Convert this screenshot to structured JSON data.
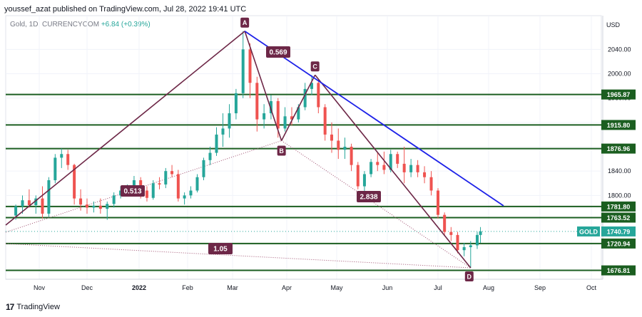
{
  "header": {
    "text": "youssef_azat published on TradingView.com, Jul 28, 2022 19:41 UTC"
  },
  "legend": {
    "symbol": "Gold, 1D, CURRENCYCOM",
    "change": "+6.84 (+0.39%)"
  },
  "footer": {
    "brand": "TradingView",
    "logo": "17"
  },
  "axis": {
    "currency": "USD",
    "price_ticks": [
      "2040.00",
      "2000.00",
      "1960.00",
      "1920.00",
      "1880.00",
      "1840.00",
      "1800.00"
    ],
    "date_ticks": [
      "Nov",
      "Dec",
      "2022",
      "Feb",
      "Mar",
      "Apr",
      "May",
      "Jun",
      "Jul",
      "Aug",
      "Sep",
      "Oct"
    ]
  },
  "chart_data": {
    "type": "candlestick",
    "symbol": "Gold, 1D, CURRENCYCOM",
    "y_unit": "USD",
    "ylim": [
      1663,
      2075
    ],
    "y_ticks": [
      1800,
      1840,
      1880,
      1920,
      1960,
      2000,
      2040
    ],
    "x_ticks": [
      "Nov",
      "Dec",
      "2022",
      "Feb",
      "Mar",
      "Apr",
      "May",
      "Jun",
      "Jul",
      "Aug",
      "Sep",
      "Oct"
    ],
    "last_price": {
      "label": "GOLD",
      "value": "1740.79"
    },
    "levels": [
      {
        "value": "1965.87"
      },
      {
        "value": "1915.80"
      },
      {
        "value": "1876.96"
      },
      {
        "value": "1781.80"
      },
      {
        "value": "1763.52"
      },
      {
        "value": "1720.94"
      },
      {
        "value": "1676.81"
      }
    ],
    "xabcd_points": [
      {
        "label": "A",
        "date": "2022-03-08",
        "price": 2070
      },
      {
        "label": "B",
        "date": "2022-03-29",
        "price": 1890
      },
      {
        "label": "C",
        "date": "2022-04-18",
        "price": 1998
      },
      {
        "label": "D",
        "date": "2022-07-21",
        "price": 1681
      }
    ],
    "ratios": [
      "0.513",
      "0.569",
      "2.838",
      "1.05"
    ],
    "trendline": {
      "from": {
        "date": "2022-03-08",
        "price": 2070
      },
      "to": {
        "date": "2022-08-10",
        "price": 1783
      }
    },
    "candles": [
      {
        "d": "2021-10-18",
        "o": 1767,
        "h": 1785,
        "l": 1760,
        "c": 1782
      },
      {
        "d": "2021-10-22",
        "o": 1782,
        "h": 1800,
        "l": 1770,
        "c": 1792
      },
      {
        "d": "2021-10-26",
        "o": 1792,
        "h": 1810,
        "l": 1780,
        "c": 1784
      },
      {
        "d": "2021-10-30",
        "o": 1784,
        "h": 1800,
        "l": 1770,
        "c": 1795
      },
      {
        "d": "2021-11-03",
        "o": 1795,
        "h": 1815,
        "l": 1762,
        "c": 1770
      },
      {
        "d": "2021-11-07",
        "o": 1770,
        "h": 1830,
        "l": 1765,
        "c": 1825
      },
      {
        "d": "2021-11-11",
        "o": 1825,
        "h": 1868,
        "l": 1820,
        "c": 1862
      },
      {
        "d": "2021-11-15",
        "o": 1862,
        "h": 1877,
        "l": 1845,
        "c": 1868
      },
      {
        "d": "2021-11-19",
        "o": 1868,
        "h": 1875,
        "l": 1842,
        "c": 1850
      },
      {
        "d": "2021-11-23",
        "o": 1850,
        "h": 1852,
        "l": 1785,
        "c": 1795
      },
      {
        "d": "2021-11-27",
        "o": 1795,
        "h": 1810,
        "l": 1775,
        "c": 1785
      },
      {
        "d": "2021-12-01",
        "o": 1785,
        "h": 1795,
        "l": 1770,
        "c": 1780
      },
      {
        "d": "2021-12-05",
        "o": 1780,
        "h": 1790,
        "l": 1772,
        "c": 1783
      },
      {
        "d": "2021-12-09",
        "o": 1783,
        "h": 1795,
        "l": 1770,
        "c": 1778
      },
      {
        "d": "2021-12-13",
        "o": 1778,
        "h": 1790,
        "l": 1760,
        "c": 1786
      },
      {
        "d": "2021-12-17",
        "o": 1786,
        "h": 1805,
        "l": 1780,
        "c": 1800
      },
      {
        "d": "2021-12-21",
        "o": 1800,
        "h": 1815,
        "l": 1795,
        "c": 1808
      },
      {
        "d": "2021-12-25",
        "o": 1808,
        "h": 1818,
        "l": 1800,
        "c": 1812
      },
      {
        "d": "2021-12-29",
        "o": 1812,
        "h": 1832,
        "l": 1805,
        "c": 1825
      },
      {
        "d": "2022-01-02",
        "o": 1825,
        "h": 1830,
        "l": 1795,
        "c": 1808
      },
      {
        "d": "2022-01-06",
        "o": 1808,
        "h": 1815,
        "l": 1790,
        "c": 1796
      },
      {
        "d": "2022-01-10",
        "o": 1796,
        "h": 1825,
        "l": 1793,
        "c": 1820
      },
      {
        "d": "2022-01-14",
        "o": 1820,
        "h": 1830,
        "l": 1810,
        "c": 1818
      },
      {
        "d": "2022-01-18",
        "o": 1818,
        "h": 1845,
        "l": 1812,
        "c": 1840
      },
      {
        "d": "2022-01-22",
        "o": 1840,
        "h": 1850,
        "l": 1830,
        "c": 1835
      },
      {
        "d": "2022-01-26",
        "o": 1835,
        "h": 1842,
        "l": 1790,
        "c": 1795
      },
      {
        "d": "2022-01-30",
        "o": 1795,
        "h": 1805,
        "l": 1785,
        "c": 1800
      },
      {
        "d": "2022-02-03",
        "o": 1800,
        "h": 1815,
        "l": 1795,
        "c": 1808
      },
      {
        "d": "2022-02-07",
        "o": 1808,
        "h": 1835,
        "l": 1805,
        "c": 1830
      },
      {
        "d": "2022-02-11",
        "o": 1830,
        "h": 1862,
        "l": 1825,
        "c": 1858
      },
      {
        "d": "2022-02-15",
        "o": 1858,
        "h": 1880,
        "l": 1850,
        "c": 1870
      },
      {
        "d": "2022-02-19",
        "o": 1870,
        "h": 1912,
        "l": 1865,
        "c": 1900
      },
      {
        "d": "2022-02-23",
        "o": 1900,
        "h": 1935,
        "l": 1880,
        "c": 1910
      },
      {
        "d": "2022-02-27",
        "o": 1910,
        "h": 1950,
        "l": 1895,
        "c": 1935
      },
      {
        "d": "2022-03-03",
        "o": 1935,
        "h": 1975,
        "l": 1925,
        "c": 1968
      },
      {
        "d": "2022-03-07",
        "o": 1968,
        "h": 2070,
        "l": 1960,
        "c": 2040
      },
      {
        "d": "2022-03-11",
        "o": 2040,
        "h": 2050,
        "l": 1960,
        "c": 1985
      },
      {
        "d": "2022-03-15",
        "o": 1985,
        "h": 1995,
        "l": 1905,
        "c": 1925
      },
      {
        "d": "2022-03-19",
        "o": 1925,
        "h": 1950,
        "l": 1910,
        "c": 1935
      },
      {
        "d": "2022-03-23",
        "o": 1935,
        "h": 1965,
        "l": 1925,
        "c": 1955
      },
      {
        "d": "2022-03-27",
        "o": 1955,
        "h": 1960,
        "l": 1895,
        "c": 1910
      },
      {
        "d": "2022-03-31",
        "o": 1910,
        "h": 1945,
        "l": 1905,
        "c": 1930
      },
      {
        "d": "2022-04-04",
        "o": 1930,
        "h": 1945,
        "l": 1915,
        "c": 1925
      },
      {
        "d": "2022-04-08",
        "o": 1925,
        "h": 1950,
        "l": 1920,
        "c": 1945
      },
      {
        "d": "2022-04-12",
        "o": 1945,
        "h": 1985,
        "l": 1940,
        "c": 1975
      },
      {
        "d": "2022-04-16",
        "o": 1975,
        "h": 1998,
        "l": 1965,
        "c": 1985
      },
      {
        "d": "2022-04-20",
        "o": 1985,
        "h": 1990,
        "l": 1935,
        "c": 1945
      },
      {
        "d": "2022-04-24",
        "o": 1945,
        "h": 1950,
        "l": 1890,
        "c": 1900
      },
      {
        "d": "2022-04-28",
        "o": 1900,
        "h": 1920,
        "l": 1870,
        "c": 1890
      },
      {
        "d": "2022-05-02",
        "o": 1890,
        "h": 1910,
        "l": 1860,
        "c": 1875
      },
      {
        "d": "2022-05-06",
        "o": 1875,
        "h": 1895,
        "l": 1860,
        "c": 1880
      },
      {
        "d": "2022-05-10",
        "o": 1880,
        "h": 1885,
        "l": 1840,
        "c": 1850
      },
      {
        "d": "2022-05-14",
        "o": 1850,
        "h": 1855,
        "l": 1810,
        "c": 1815
      },
      {
        "d": "2022-05-18",
        "o": 1815,
        "h": 1840,
        "l": 1805,
        "c": 1835
      },
      {
        "d": "2022-05-22",
        "o": 1835,
        "h": 1860,
        "l": 1830,
        "c": 1855
      },
      {
        "d": "2022-05-26",
        "o": 1855,
        "h": 1870,
        "l": 1840,
        "c": 1850
      },
      {
        "d": "2022-05-30",
        "o": 1850,
        "h": 1872,
        "l": 1835,
        "c": 1842
      },
      {
        "d": "2022-06-03",
        "o": 1842,
        "h": 1875,
        "l": 1838,
        "c": 1868
      },
      {
        "d": "2022-06-07",
        "o": 1868,
        "h": 1872,
        "l": 1845,
        "c": 1852
      },
      {
        "d": "2022-06-11",
        "o": 1852,
        "h": 1880,
        "l": 1820,
        "c": 1838
      },
      {
        "d": "2022-06-15",
        "o": 1838,
        "h": 1860,
        "l": 1830,
        "c": 1850
      },
      {
        "d": "2022-06-19",
        "o": 1850,
        "h": 1858,
        "l": 1830,
        "c": 1838
      },
      {
        "d": "2022-06-23",
        "o": 1838,
        "h": 1848,
        "l": 1820,
        "c": 1830
      },
      {
        "d": "2022-06-27",
        "o": 1830,
        "h": 1840,
        "l": 1800,
        "c": 1808
      },
      {
        "d": "2022-07-01",
        "o": 1808,
        "h": 1812,
        "l": 1762,
        "c": 1768
      },
      {
        "d": "2022-07-05",
        "o": 1768,
        "h": 1772,
        "l": 1735,
        "c": 1740
      },
      {
        "d": "2022-07-09",
        "o": 1740,
        "h": 1748,
        "l": 1725,
        "c": 1735
      },
      {
        "d": "2022-07-13",
        "o": 1735,
        "h": 1740,
        "l": 1705,
        "c": 1710
      },
      {
        "d": "2022-07-17",
        "o": 1710,
        "h": 1722,
        "l": 1700,
        "c": 1715
      },
      {
        "d": "2022-07-21",
        "o": 1715,
        "h": 1725,
        "l": 1681,
        "c": 1718
      },
      {
        "d": "2022-07-25",
        "o": 1718,
        "h": 1740,
        "l": 1712,
        "c": 1735
      },
      {
        "d": "2022-07-27",
        "o": 1735,
        "h": 1748,
        "l": 1722,
        "c": 1741
      }
    ]
  },
  "colors": {
    "level_line": "#1b5e20",
    "bull": "#26a69a",
    "bear": "#ef5350",
    "pattern": "#6d2747",
    "trendline": "#1e22e8",
    "last_price": "#26a69a"
  }
}
